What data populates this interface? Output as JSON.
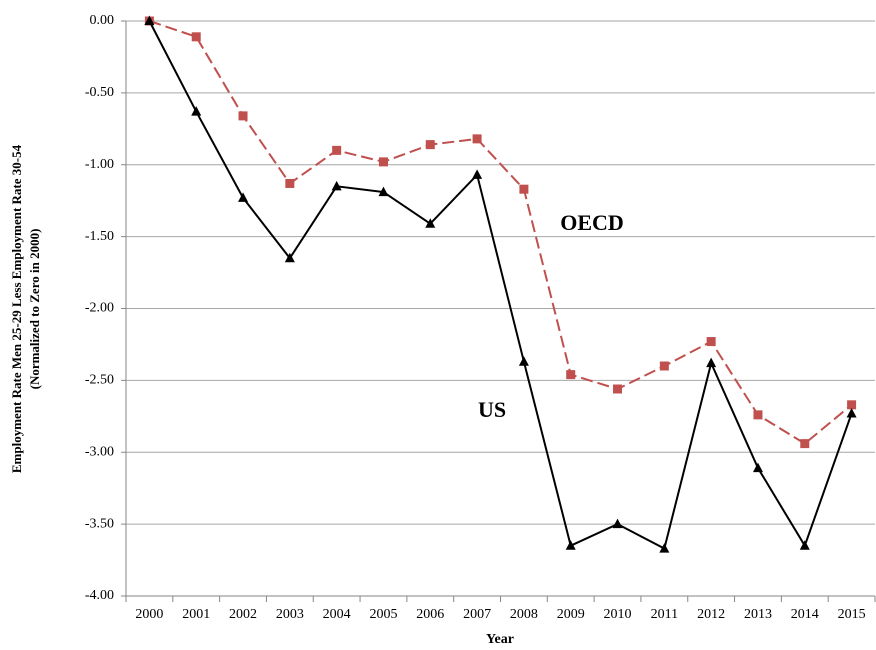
{
  "chart_data": {
    "type": "line",
    "x_label": "Year",
    "y_label": [
      "Employment Rate Men 25-29 Less Employment Rate 30-54",
      "(Normalized to Zero in 2000)"
    ],
    "categories": [
      "2000",
      "2001",
      "2002",
      "2003",
      "2004",
      "2005",
      "2006",
      "2007",
      "2008",
      "2009",
      "2010",
      "2011",
      "2012",
      "2013",
      "2014",
      "2015"
    ],
    "series": [
      {
        "name": "OECD",
        "color": "#c0504d",
        "marker": "square",
        "dashed": true,
        "values": [
          0,
          -0.11,
          -0.66,
          -1.13,
          -0.9,
          -0.98,
          -0.86,
          -0.82,
          -1.17,
          -2.46,
          -2.56,
          -2.4,
          -2.23,
          -2.74,
          -2.94,
          -2.67
        ]
      },
      {
        "name": "US",
        "color": "#000000",
        "marker": "triangle",
        "dashed": false,
        "values": [
          0,
          -0.63,
          -1.23,
          -1.65,
          -1.15,
          -1.19,
          -1.41,
          -1.07,
          -2.37,
          -3.65,
          -3.5,
          -3.67,
          -2.38,
          -3.11,
          -3.65,
          -2.73
        ]
      }
    ],
    "ylim": [
      -4,
      0
    ],
    "yticks": [
      {
        "value": 0,
        "label": "0.00"
      },
      {
        "value": -0.5,
        "label": "-0.50"
      },
      {
        "value": -1,
        "label": "-1.00"
      },
      {
        "value": -1.5,
        "label": "-1.50"
      },
      {
        "value": -2,
        "label": "-2.00"
      },
      {
        "value": -2.5,
        "label": "-2.50"
      },
      {
        "value": -3,
        "label": "-3.00"
      },
      {
        "value": -3.5,
        "label": "-3.50"
      },
      {
        "value": -4,
        "label": "-4.00"
      }
    ],
    "grid": true
  }
}
